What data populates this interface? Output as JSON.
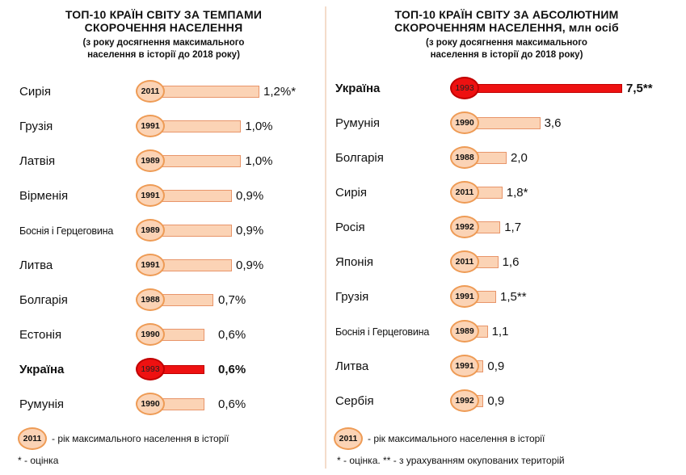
{
  "chart_data": [
    {
      "type": "bar",
      "orientation": "horizontal",
      "title": "ТОП-10 КРАЇН СВІТУ ЗА ТЕМПАМИ СКОРОЧЕННЯ НАСЕЛЕННЯ",
      "subtitle": "(з року досягнення максимального населення в історії до 2018 року)",
      "xlim": [
        0,
        1.2
      ],
      "categories": [
        "Сирія",
        "Грузія",
        "Латвія",
        "Вірменія",
        "Боснія і Герцеговина",
        "Литва",
        "Болгарія",
        "Естонія",
        "Україна",
        "Румунія"
      ],
      "values": [
        1.2,
        1.0,
        1.0,
        0.9,
        0.9,
        0.9,
        0.7,
        0.6,
        0.6,
        0.6
      ],
      "value_labels": [
        "1,2%*",
        "1,0%",
        "1,0%",
        "0,9%",
        "0,9%",
        "0,9%",
        "0,7%",
        "0,6%",
        "0,6%",
        "0,6%"
      ],
      "years": [
        "2011",
        "1991",
        "1989",
        "1991",
        "1989",
        "1991",
        "1988",
        "1990",
        "1993",
        "1990"
      ],
      "highlight_index": 8,
      "colors": {
        "bar": "#fbd3b5",
        "bar_border": "#e8956a",
        "highlight": "#ee1111"
      },
      "legend_year": "2011",
      "legend_text": "- рік максимального населення в історії",
      "notes": [
        "* - оцінка"
      ]
    },
    {
      "type": "bar",
      "orientation": "horizontal",
      "title": "ТОП-10 КРАЇН СВІТУ ЗА АБСОЛЮТНИМ СКОРОЧЕННЯМ НАСЕЛЕННЯ, млн осіб",
      "subtitle": "(з року досягнення максимального населення в історії до 2018 року)",
      "xlim": [
        0,
        7.5
      ],
      "categories": [
        "Україна",
        "Румунія",
        "Болгарія",
        "Сирія",
        "Росія",
        "Японія",
        "Грузія",
        "Боснія і Герцеговина",
        "Литва",
        "Сербія"
      ],
      "values": [
        7.5,
        3.6,
        2.0,
        1.8,
        1.7,
        1.6,
        1.5,
        1.1,
        0.9,
        0.9
      ],
      "value_labels": [
        "7,5**",
        "3,6",
        "2,0",
        "1,8*",
        "1,7",
        "1,6",
        "1,5**",
        "1,1",
        "0,9",
        "0,9"
      ],
      "years": [
        "1993",
        "1990",
        "1988",
        "2011",
        "1992",
        "2011",
        "1991",
        "1989",
        "1991",
        "1992"
      ],
      "highlight_index": 0,
      "colors": {
        "bar": "#fbd3b5",
        "bar_border": "#e8956a",
        "highlight": "#ee1111"
      },
      "legend_year": "2011",
      "legend_text": "- рік максимального населення в історії",
      "notes": [
        "* - оцінка. ** - з урахуванням окупованих територій"
      ]
    }
  ]
}
